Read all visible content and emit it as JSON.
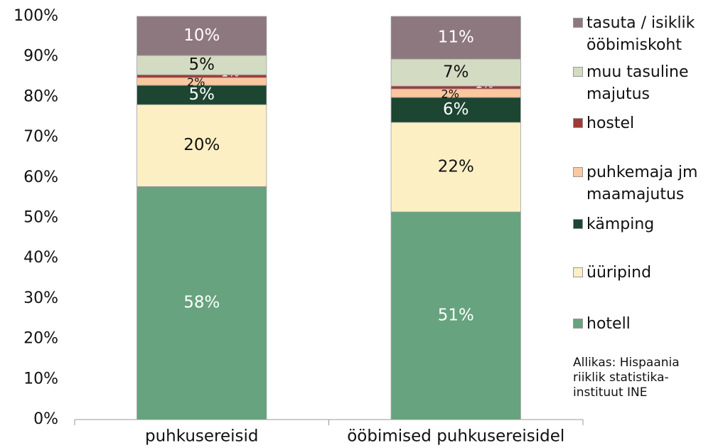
{
  "chart_data": {
    "type": "stacked_bar",
    "categories": [
      "puhkusereisid",
      "ööbimised puhkusereisidel"
    ],
    "series": [
      {
        "name": "hotell",
        "color": "#66a37e",
        "label_color": "#ffffff",
        "values": [
          57.8,
          51.5
        ],
        "value_labels": [
          "58%",
          "51%"
        ]
      },
      {
        "name": "üüripind",
        "color": "#fdefc4",
        "label_color": "#111111",
        "values": [
          20.3,
          22.2
        ],
        "value_labels": [
          "20%",
          "22%"
        ]
      },
      {
        "name": "kämping",
        "color": "#1c4532",
        "label_color": "#ffffff",
        "values": [
          4.8,
          6.2
        ],
        "value_labels": [
          "5%",
          "6%"
        ]
      },
      {
        "name": "puhkemaja jm maamajutus",
        "color": "#fac79f",
        "label_color": "#111111",
        "values": [
          1.9,
          2.1
        ],
        "value_labels": [
          "2%",
          "2%"
        ]
      },
      {
        "name": "hostel",
        "color": "#9e3a37",
        "label_color": "#ffffff",
        "values": [
          0.7,
          0.7
        ],
        "value_labels": [
          "1%",
          "1%"
        ]
      },
      {
        "name": "muu tasuline majutus",
        "color": "#d3dbc2",
        "label_color": "#111111",
        "values": [
          4.8,
          6.7
        ],
        "value_labels": [
          "5%",
          "7%"
        ]
      },
      {
        "name": "tasuta / isiklik ööbimiskoht",
        "color": "#8e7880",
        "label_color": "#ffffff",
        "values": [
          9.7,
          10.6
        ],
        "value_labels": [
          "10%",
          "11%"
        ]
      }
    ],
    "ylim": [
      0,
      100
    ],
    "yticks": [
      {
        "value": 0,
        "label": "0%"
      },
      {
        "value": 10,
        "label": "10%"
      },
      {
        "value": 20,
        "label": "20%"
      },
      {
        "value": 30,
        "label": "30%"
      },
      {
        "value": 40,
        "label": "40%"
      },
      {
        "value": 50,
        "label": "50%"
      },
      {
        "value": 60,
        "label": "60%"
      },
      {
        "value": 70,
        "label": "70%"
      },
      {
        "value": 80,
        "label": "80%"
      },
      {
        "value": 90,
        "label": "90%"
      },
      {
        "value": 100,
        "label": "100%"
      }
    ],
    "legend": "right",
    "annotation": "Allikas: Hispaania riiklik statistika-instituut INE"
  }
}
